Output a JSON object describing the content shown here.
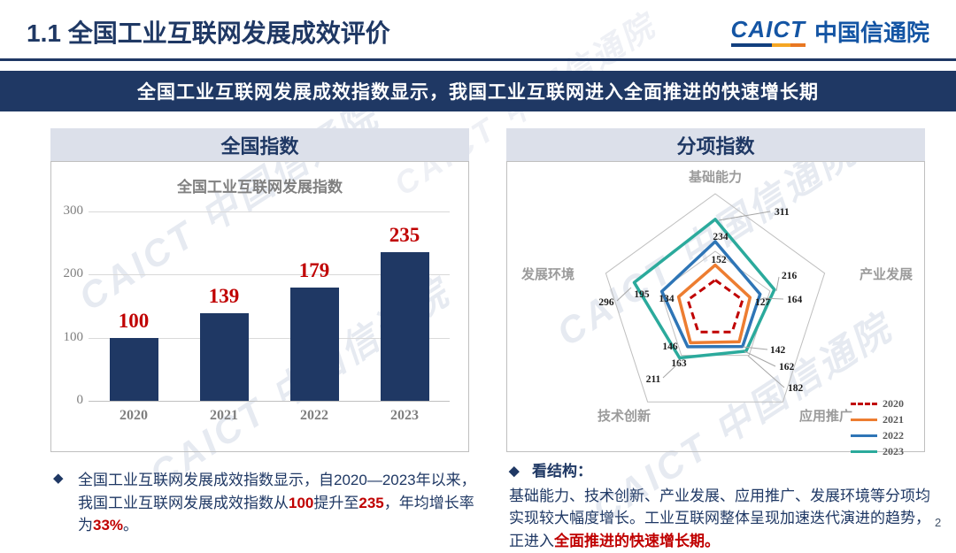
{
  "page": {
    "title": "1.1  全国工业互联网发展成效评价",
    "page_number": "2",
    "watermark": "CAICT 中国信通院"
  },
  "logo": {
    "caict": "CAICT",
    "cn": "中国信通院"
  },
  "banner": {
    "text": "全国工业互联网发展成效指数显示，我国工业互联网进入全面推进的快速增长期"
  },
  "panels": {
    "left_title": "全国指数",
    "right_title": "分项指数"
  },
  "chart_data": [
    {
      "type": "bar",
      "title": "全国工业互联网发展指数",
      "categories": [
        "2020",
        "2021",
        "2022",
        "2023"
      ],
      "values": [
        100,
        139,
        179,
        235
      ],
      "ylim": [
        0,
        300
      ],
      "yticks": [
        0,
        100,
        200,
        300
      ],
      "bar_color": "#1F3864",
      "value_label_color": "#C00000",
      "grid": true
    },
    {
      "type": "radar",
      "axes": [
        "基础能力",
        "产业发展",
        "应用推广",
        "技术创新",
        "发展环境"
      ],
      "rmax": 400,
      "grid_levels": [
        200,
        400
      ],
      "legend_position": "bottom-right",
      "series": [
        {
          "name": "2020",
          "values": [
            100,
            100,
            100,
            100,
            100
          ],
          "color": "#C00000",
          "dashed": true,
          "show_labels": false
        },
        {
          "name": "2021",
          "values": [
            152,
            127,
            142,
            146,
            134
          ],
          "color": "#ED7D31",
          "dashed": false,
          "show_labels": true
        },
        {
          "name": "2022",
          "values": [
            234,
            164,
            162,
            163,
            195
          ],
          "color": "#2E75B6",
          "dashed": false,
          "show_labels": true
        },
        {
          "name": "2023",
          "values": [
            311,
            216,
            182,
            211,
            296
          ],
          "color": "#2BAA9C",
          "dashed": false,
          "show_labels": true
        }
      ]
    }
  ],
  "notes": {
    "left": {
      "bullet": "◆",
      "segments": [
        {
          "t": "全国工业互联网发展成效指数显示，自2020—2023年以来，我国工业互联网发展成效指数从"
        },
        {
          "t": "100",
          "em": 1
        },
        {
          "t": "提升至"
        },
        {
          "t": "235",
          "em": 1
        },
        {
          "t": "，年均增长率为"
        },
        {
          "t": "33%",
          "em": 1
        },
        {
          "t": "。"
        }
      ]
    },
    "right": {
      "bullet": "◆",
      "heading": "看结构：",
      "segments": [
        {
          "t": "基础能力、技术创新、产业发展、应用推广、发展环境等分项均实现较大幅度增长。工业互联网整体呈现加速迭代演进的趋势，正进入"
        },
        {
          "t": "全面推进的快速增长期。",
          "em": 1
        }
      ]
    }
  },
  "colors": {
    "navy": "#1F3864",
    "red": "#C00000",
    "orange": "#ED7D31",
    "blue": "#2E75B6",
    "teal": "#2BAA9C",
    "header_bg": "#DCE0EA"
  }
}
